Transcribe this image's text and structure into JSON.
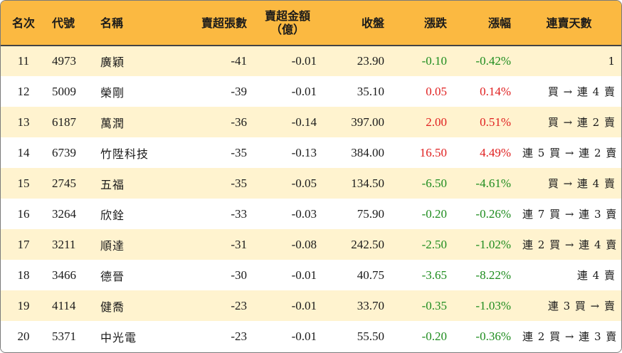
{
  "headers": {
    "rank": "名次",
    "code": "代號",
    "name": "名稱",
    "sell_vol": "賣超張數",
    "sell_amt_line1": "賣超金額",
    "sell_amt_line2": "（億）",
    "close": "收盤",
    "change": "漲跌",
    "pct": "漲幅",
    "streak": "連賣天數"
  },
  "colors": {
    "header_bg": "#fbb941",
    "stripe_bg": "#fff3cf",
    "up": "#e02020",
    "down": "#1e8c1e"
  },
  "rows": [
    {
      "rank": "11",
      "code": "4973",
      "name": "廣穎",
      "sell_vol": "-41",
      "sell_amt": "-0.01",
      "close": "23.90",
      "change": "-0.10",
      "pct": "-0.42%",
      "dir": "neg",
      "streak": "1"
    },
    {
      "rank": "12",
      "code": "5009",
      "name": "榮剛",
      "sell_vol": "-39",
      "sell_amt": "-0.01",
      "close": "35.10",
      "change": "0.05",
      "pct": "0.14%",
      "dir": "pos",
      "streak": "買 → 連 4 賣"
    },
    {
      "rank": "13",
      "code": "6187",
      "name": "萬潤",
      "sell_vol": "-36",
      "sell_amt": "-0.14",
      "close": "397.00",
      "change": "2.00",
      "pct": "0.51%",
      "dir": "pos",
      "streak": "買 → 連 2 賣"
    },
    {
      "rank": "14",
      "code": "6739",
      "name": "竹陞科技",
      "sell_vol": "-35",
      "sell_amt": "-0.13",
      "close": "384.00",
      "change": "16.50",
      "pct": "4.49%",
      "dir": "pos",
      "streak": "連 5 買 → 連 2 賣"
    },
    {
      "rank": "15",
      "code": "2745",
      "name": "五福",
      "sell_vol": "-35",
      "sell_amt": "-0.05",
      "close": "134.50",
      "change": "-6.50",
      "pct": "-4.61%",
      "dir": "neg",
      "streak": "買 → 連 4 賣"
    },
    {
      "rank": "16",
      "code": "3264",
      "name": "欣銓",
      "sell_vol": "-33",
      "sell_amt": "-0.03",
      "close": "75.90",
      "change": "-0.20",
      "pct": "-0.26%",
      "dir": "neg",
      "streak": "連 7 買 → 連 3 賣"
    },
    {
      "rank": "17",
      "code": "3211",
      "name": "順達",
      "sell_vol": "-31",
      "sell_amt": "-0.08",
      "close": "242.50",
      "change": "-2.50",
      "pct": "-1.02%",
      "dir": "neg",
      "streak": "連 2 買 → 連 4 賣"
    },
    {
      "rank": "18",
      "code": "3466",
      "name": "德晉",
      "sell_vol": "-30",
      "sell_amt": "-0.01",
      "close": "40.75",
      "change": "-3.65",
      "pct": "-8.22%",
      "dir": "neg",
      "streak": "連 4 賣"
    },
    {
      "rank": "19",
      "code": "4114",
      "name": "健喬",
      "sell_vol": "-23",
      "sell_amt": "-0.01",
      "close": "33.70",
      "change": "-0.35",
      "pct": "-1.03%",
      "dir": "neg",
      "streak": "連 3 買 → 賣"
    },
    {
      "rank": "20",
      "code": "5371",
      "name": "中光電",
      "sell_vol": "-23",
      "sell_amt": "-0.01",
      "close": "55.50",
      "change": "-0.20",
      "pct": "-0.36%",
      "dir": "neg",
      "streak": "連 2 買 → 連 3 賣"
    }
  ]
}
